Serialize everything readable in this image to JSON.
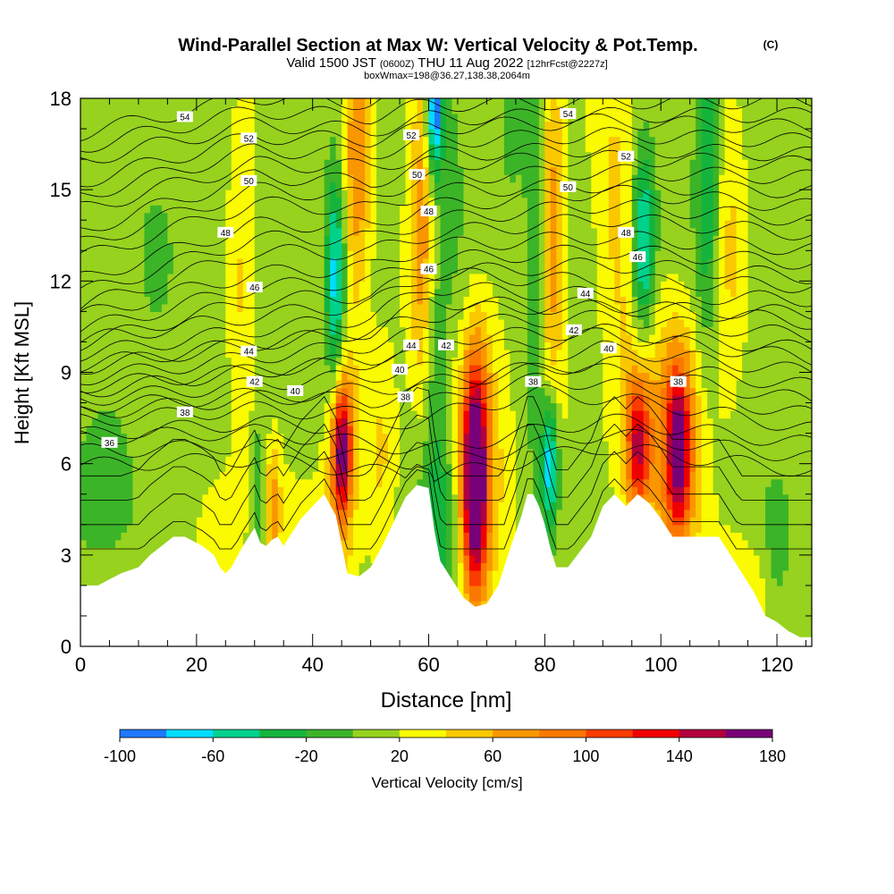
{
  "header": {
    "title": "Wind-Parallel Section at Max W: Vertical Velocity & Pot.Temp.",
    "copyright": "(C)",
    "valid_prefix": "Valid 1500 JST",
    "valid_utc": "(0600Z)",
    "valid_date": "THU 11 Aug 2022",
    "forecast": "[12hrFcst@2227z]",
    "box_info": "boxWmax=198@36.27,138.38,2064m"
  },
  "colors": {
    "scale": [
      "#1414ff",
      "#1f78ff",
      "#00dcff",
      "#00d28c",
      "#14b43c",
      "#3cb428",
      "#96d21e",
      "#fafa00",
      "#fac800",
      "#fa9600",
      "#fa7800",
      "#fa3c00",
      "#f00000",
      "#b4003c",
      "#780078"
    ],
    "terrain": "#ffffff",
    "contour": "#000000"
  },
  "chart_data": {
    "type": "heatmap",
    "title": "Wind-Parallel Section at Max W: Vertical Velocity & Pot.Temp.",
    "xlabel": "Distance [nm]",
    "ylabel": "Height [Kft MSL]",
    "xlim": [
      0,
      126
    ],
    "ylim": [
      0,
      18
    ],
    "x_ticks": [
      "0",
      "20",
      "40",
      "60",
      "80",
      "100",
      "120"
    ],
    "x_tick_values": [
      0,
      20,
      40,
      60,
      80,
      100,
      120
    ],
    "y_ticks": [
      "0",
      "3",
      "6",
      "9",
      "12",
      "15",
      "18"
    ],
    "y_tick_values": [
      0,
      3,
      6,
      9,
      12,
      15,
      18
    ],
    "colorbar": {
      "label": "Vertical Velocity [cm/s]",
      "bounds": [
        -120,
        -100,
        -80,
        -60,
        -40,
        -20,
        0,
        20,
        40,
        60,
        80,
        100,
        120,
        140,
        160,
        180
      ],
      "tick_labels": [
        "-100",
        "-60",
        "-20",
        "20",
        "60",
        "100",
        "140",
        "180"
      ],
      "tick_values": [
        -100,
        -60,
        -20,
        20,
        60,
        100,
        140,
        180
      ]
    },
    "terrain_profile": {
      "x": [
        0,
        3,
        7,
        10,
        12,
        14,
        16,
        18,
        21,
        23,
        24,
        25,
        26,
        28,
        30,
        31,
        32,
        33,
        34,
        35,
        36,
        38,
        40,
        42,
        44,
        46,
        48,
        50,
        52,
        54,
        56,
        58,
        60,
        61,
        62,
        64,
        66,
        68,
        70,
        72,
        74,
        76,
        77,
        78,
        79,
        80,
        81,
        82,
        84,
        86,
        88,
        90,
        92,
        94,
        96,
        98,
        100,
        102,
        104,
        106,
        108,
        110,
        112,
        114,
        116,
        118,
        120,
        122,
        124,
        126
      ],
      "y": [
        2.0,
        2.0,
        2.4,
        2.6,
        3.0,
        3.3,
        3.6,
        3.6,
        3.3,
        3.0,
        2.6,
        2.4,
        2.6,
        3.3,
        3.9,
        3.4,
        3.3,
        3.5,
        3.6,
        3.3,
        3.6,
        4.2,
        4.6,
        5.0,
        4.3,
        2.4,
        2.3,
        2.6,
        3.3,
        4.1,
        4.9,
        5.3,
        5.2,
        3.8,
        2.8,
        2.2,
        1.6,
        1.3,
        1.4,
        2.0,
        3.2,
        4.3,
        5.0,
        5.0,
        4.6,
        4.0,
        3.2,
        2.6,
        2.6,
        3.1,
        3.6,
        4.6,
        5.0,
        4.6,
        5.0,
        4.7,
        4.2,
        3.6,
        3.6,
        3.6,
        3.6,
        3.6,
        3.0,
        2.4,
        1.8,
        1.0,
        0.8,
        0.5,
        0.3,
        0.3
      ]
    },
    "vertical_velocity_cells": [
      {
        "x": 45,
        "y": 6.5,
        "w": 140,
        "sx": 1.2,
        "sy": 1.6
      },
      {
        "x": 45,
        "y": 8.5,
        "w": 40,
        "sx": 2.4,
        "sy": 6.5
      },
      {
        "x": 44,
        "y": 12,
        "w": -110,
        "sx": 1.3,
        "sy": 2.8
      },
      {
        "x": 68,
        "y": 5.5,
        "w": 180,
        "sx": 1.5,
        "sy": 2.6
      },
      {
        "x": 69,
        "y": 6.5,
        "w": 50,
        "sx": 5.0,
        "sy": 4.2
      },
      {
        "x": 81,
        "y": 6,
        "w": -100,
        "sx": 1.0,
        "sy": 1.6
      },
      {
        "x": 79,
        "y": 12,
        "w": -40,
        "sx": 1.3,
        "sy": 6
      },
      {
        "x": 62,
        "y": 4,
        "w": -45,
        "sx": 2.5,
        "sy": 2.3
      },
      {
        "x": 61,
        "y": 10,
        "w": -30,
        "sx": 1.3,
        "sy": 3
      },
      {
        "x": 63,
        "y": 12,
        "w": -20,
        "sx": 3,
        "sy": 6
      },
      {
        "x": 59,
        "y": 14,
        "w": 70,
        "sx": 1.8,
        "sy": 4.5
      },
      {
        "x": 61,
        "y": 17.5,
        "w": -110,
        "sx": 1.0,
        "sy": 1.5
      },
      {
        "x": 48,
        "y": 16,
        "w": 60,
        "sx": 1.8,
        "sy": 3
      },
      {
        "x": 81,
        "y": 13,
        "w": 70,
        "sx": 1.7,
        "sy": 5
      },
      {
        "x": 103,
        "y": 6.5,
        "w": 120,
        "sx": 1.5,
        "sy": 2
      },
      {
        "x": 103,
        "y": 6.5,
        "w": 50,
        "sx": 4,
        "sy": 3.5
      },
      {
        "x": 96,
        "y": 6.6,
        "w": 100,
        "sx": 1.4,
        "sy": 1.5
      },
      {
        "x": 96,
        "y": 7.5,
        "w": 40,
        "sx": 3.5,
        "sy": 3
      },
      {
        "x": 97,
        "y": 13,
        "w": -90,
        "sx": 1.4,
        "sy": 2.2
      },
      {
        "x": 108,
        "y": 15,
        "w": -50,
        "sx": 1.4,
        "sy": 4
      },
      {
        "x": 28,
        "y": 12,
        "w": 35,
        "sx": 1.8,
        "sy": 5
      },
      {
        "x": 31,
        "y": 5,
        "w": -40,
        "sx": 1.5,
        "sy": 2
      },
      {
        "x": 33,
        "y": 4.5,
        "w": 70,
        "sx": 1.0,
        "sy": 1.6
      },
      {
        "x": 38,
        "y": 4,
        "w": 20,
        "sx": 4,
        "sy": 2
      },
      {
        "x": 12,
        "y": 15,
        "w": -5,
        "sx": 5,
        "sy": 6
      },
      {
        "x": 3,
        "y": 5,
        "w": -15,
        "sx": 5,
        "sy": 1.5
      },
      {
        "x": 24,
        "y": 4,
        "w": 30,
        "sx": 3,
        "sy": 1.5
      },
      {
        "x": 52,
        "y": 6.5,
        "w": 30,
        "sx": 2,
        "sy": 3
      },
      {
        "x": 116,
        "y": 1.5,
        "w": 30,
        "sx": 6,
        "sy": 1.5
      },
      {
        "x": 120,
        "y": 3,
        "w": -30,
        "sx": 2,
        "sy": 2
      },
      {
        "x": 92,
        "y": 16,
        "w": 35,
        "sx": 3,
        "sy": 4
      },
      {
        "x": 112,
        "y": 14,
        "w": 30,
        "sx": 2,
        "sy": 5
      },
      {
        "x": 85,
        "y": 10,
        "w": -5,
        "sx": 3,
        "sy": 3
      },
      {
        "x": 74,
        "y": 12,
        "w": -15,
        "sx": 3,
        "sy": 5
      }
    ],
    "theta_contours": [
      {
        "label": "36",
        "surface_km": [
          [
            0,
            6.4
          ],
          [
            30,
            6.6
          ],
          [
            60,
            6.0
          ],
          [
            90,
            7.0
          ],
          [
            126,
            6.2
          ]
        ]
      },
      {
        "label": "38",
        "surface_km": [
          [
            0,
            7.4
          ],
          [
            30,
            7.8
          ],
          [
            50,
            7.6
          ],
          [
            60,
            8.0
          ],
          [
            80,
            8.8
          ],
          [
            100,
            8.4
          ],
          [
            126,
            7.6
          ]
        ]
      },
      {
        "label": "40",
        "surface_km": [
          [
            0,
            8.1
          ],
          [
            30,
            8.6
          ],
          [
            50,
            8.9
          ],
          [
            65,
            9.2
          ],
          [
            90,
            9.8
          ],
          [
            126,
            9.0
          ]
        ]
      },
      {
        "label": "42",
        "surface_km": [
          [
            0,
            8.8
          ],
          [
            30,
            9.5
          ],
          [
            50,
            9.9
          ],
          [
            65,
            10.6
          ],
          [
            90,
            10.8
          ],
          [
            126,
            10.2
          ]
        ]
      },
      {
        "label": "44",
        "surface_km": [
          [
            0,
            9.6
          ],
          [
            30,
            10.4
          ],
          [
            50,
            10.8
          ],
          [
            60,
            11.8
          ],
          [
            80,
            11.6
          ],
          [
            126,
            11.4
          ]
        ]
      },
      {
        "label": "46",
        "surface_km": [
          [
            0,
            10.4
          ],
          [
            30,
            11.8
          ],
          [
            50,
            12.0
          ],
          [
            60,
            12.7
          ],
          [
            90,
            13.0
          ],
          [
            126,
            12.6
          ]
        ]
      },
      {
        "label": "48",
        "surface_km": [
          [
            0,
            11.6
          ],
          [
            30,
            13.4
          ],
          [
            50,
            13.4
          ],
          [
            60,
            14.0
          ],
          [
            90,
            14.5
          ],
          [
            126,
            14.0
          ]
        ]
      },
      {
        "label": "50",
        "surface_km": [
          [
            0,
            13.2
          ],
          [
            30,
            15.0
          ],
          [
            50,
            14.8
          ],
          [
            60,
            15.4
          ],
          [
            90,
            15.6
          ],
          [
            126,
            15.4
          ]
        ]
      },
      {
        "label": "52",
        "surface_km": [
          [
            0,
            14.8
          ],
          [
            30,
            16.3
          ],
          [
            50,
            16.2
          ],
          [
            60,
            16.6
          ],
          [
            90,
            16.8
          ],
          [
            126,
            16.6
          ]
        ]
      },
      {
        "label": "54",
        "surface_km": [
          [
            0,
            16.4
          ],
          [
            30,
            17.6
          ],
          [
            50,
            17.4
          ],
          [
            60,
            17.8
          ],
          [
            90,
            17.9
          ],
          [
            126,
            17.9
          ]
        ]
      }
    ],
    "theta_labels": [
      {
        "label": "54",
        "x": 18,
        "y": 17.4
      },
      {
        "label": "52",
        "x": 29,
        "y": 16.7
      },
      {
        "label": "50",
        "x": 29,
        "y": 15.3
      },
      {
        "label": "48",
        "x": 25,
        "y": 13.6
      },
      {
        "label": "46",
        "x": 30,
        "y": 11.8
      },
      {
        "label": "44",
        "x": 29,
        "y": 9.7
      },
      {
        "label": "42",
        "x": 30,
        "y": 8.7
      },
      {
        "label": "40",
        "x": 37,
        "y": 8.4
      },
      {
        "label": "38",
        "x": 18,
        "y": 7.7
      },
      {
        "label": "36",
        "x": 5,
        "y": 6.7
      },
      {
        "label": "52",
        "x": 57,
        "y": 16.8
      },
      {
        "label": "50",
        "x": 58,
        "y": 15.5
      },
      {
        "label": "48",
        "x": 60,
        "y": 14.3
      },
      {
        "label": "46",
        "x": 60,
        "y": 12.4
      },
      {
        "label": "44",
        "x": 57,
        "y": 9.9
      },
      {
        "label": "42",
        "x": 63,
        "y": 9.9
      },
      {
        "label": "40",
        "x": 55,
        "y": 9.1
      },
      {
        "label": "38",
        "x": 56,
        "y": 8.2
      },
      {
        "label": "54",
        "x": 84,
        "y": 17.5
      },
      {
        "label": "52",
        "x": 94,
        "y": 16.1
      },
      {
        "label": "50",
        "x": 84,
        "y": 15.1
      },
      {
        "label": "48",
        "x": 94,
        "y": 13.6
      },
      {
        "label": "46",
        "x": 96,
        "y": 12.8
      },
      {
        "label": "44",
        "x": 87,
        "y": 11.6
      },
      {
        "label": "42",
        "x": 85,
        "y": 10.4
      },
      {
        "label": "40",
        "x": 91,
        "y": 9.8
      },
      {
        "label": "38",
        "x": 78,
        "y": 8.7
      },
      {
        "label": "38",
        "x": 103,
        "y": 8.7
      }
    ],
    "grid": false,
    "legend": "bottom"
  }
}
